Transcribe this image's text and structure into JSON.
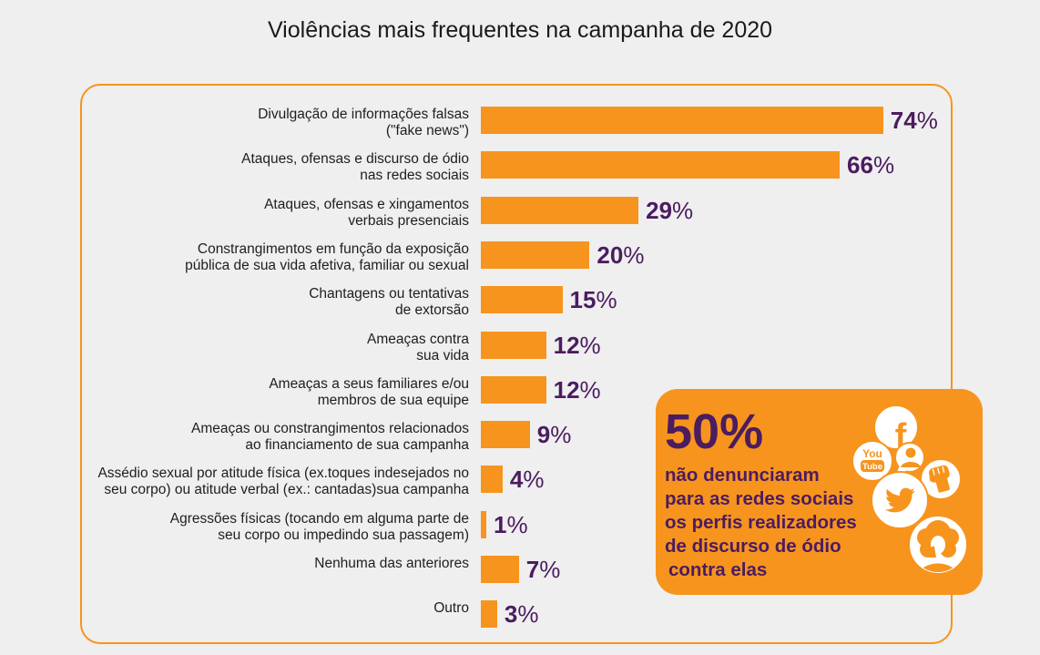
{
  "colors": {
    "background": "#efefef",
    "title_text": "#1a1a1a",
    "label_text": "#1e1e1e",
    "bar": "#f7941d",
    "value_text": "#4b1c60",
    "frame": "#f7941d",
    "callout_bg": "#f7941d",
    "callout_text": "#4b1c60"
  },
  "chart_data": {
    "type": "bar",
    "orientation": "horizontal",
    "title": "Violências mais frequentes na campanha de 2020",
    "categories": [
      "Divulgação de informações falsas\n(\"fake news\")",
      "Ataques, ofensas e discurso de ódio\nnas redes sociais",
      "Ataques, ofensas e xingamentos\nverbais presenciais",
      "Constrangimentos em função da exposição\npública de sua vida afetiva, familiar ou sexual",
      "Chantagens ou tentativas\nde extorsão",
      "Ameaças contra\nsua vida",
      "Ameaças a seus familiares e/ou\nmembros de sua equipe",
      "Ameaças ou constrangimentos relacionados\nao financiamento de sua campanha",
      "Assédio sexual por atitude física (ex.toques indesejados no\nseu corpo) ou atitude verbal (ex.: cantadas)sua campanha",
      "Agressões físicas (tocando em alguma parte de\nseu corpo ou impedindo sua passagem)",
      "Nenhuma das anteriores",
      "Outro"
    ],
    "values": [
      74,
      66,
      29,
      20,
      15,
      12,
      12,
      9,
      4,
      1,
      7,
      3
    ],
    "value_suffix": "%",
    "grid": false,
    "legend": "none"
  },
  "callout": {
    "stat": "50%",
    "lines": [
      "não denunciaram",
      "para as redes sociais",
      "os perfis realizadores",
      "de discurso de ódio",
      "contra elas"
    ],
    "icons": [
      "facebook-icon",
      "youtube-icon",
      "speech-person-icon",
      "fist-icon",
      "twitter-icon",
      "woman-icon"
    ],
    "logo_text": {
      "facebook": "f",
      "youtube_top": "You",
      "youtube_bottom": "Tube"
    }
  }
}
